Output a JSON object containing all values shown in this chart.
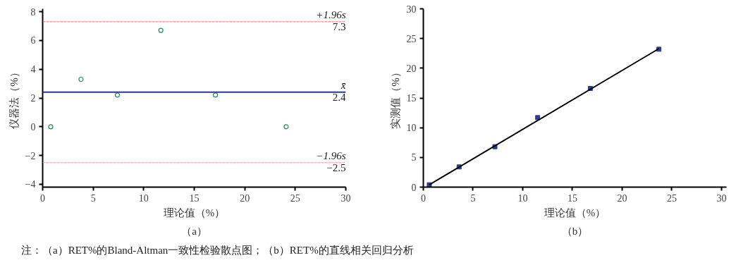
{
  "chart_data": [
    {
      "type": "scatter",
      "title": "（a）",
      "xlabel": "理论值（%）",
      "ylabel": "仪器法（%）",
      "xlim": [
        0,
        30
      ],
      "ylim": [
        -4.2,
        8.2
      ],
      "xticks": [
        0,
        5,
        10,
        15,
        20,
        25,
        30
      ],
      "yticks": [
        -4,
        -2,
        0,
        2,
        4,
        6,
        8
      ],
      "grid": false,
      "marker": "circle",
      "series": [
        {
          "color": "#2e8b57",
          "x": [
            0.8,
            3.8,
            7.4,
            11.7,
            17.1,
            24.1
          ],
          "values": [
            0,
            3.3,
            2.2,
            6.7,
            2.2,
            0
          ]
        }
      ],
      "ref_lines": [
        {
          "axis": "y",
          "value": 7.3,
          "label": "+1.96s",
          "color": "#ff6666",
          "line_style": "dashed"
        },
        {
          "axis": "y",
          "value": 2.4,
          "label": "x̄",
          "color": "#2b3a8f",
          "line_style": "solid"
        },
        {
          "axis": "y",
          "value": -2.5,
          "label": "−1.96s",
          "color": "#ff9999",
          "line_style": "dashed"
        }
      ],
      "annotations": [
        {
          "text": "7.3",
          "y": 7.3
        },
        {
          "text": "2.4",
          "y": 2.4
        },
        {
          "text": "−2.5",
          "y": -2.5
        },
        "注：（a）RET%的Bland-Altman一致性检验散点图；（b）RET%的直线相关回归分析"
      ]
    },
    {
      "type": "scatter",
      "title": "（b）",
      "xlabel": "理论值（%）",
      "ylabel": "实测值（%）",
      "xlim": [
        0,
        30.5
      ],
      "ylim": [
        0,
        30
      ],
      "xticks": [
        0,
        5,
        10,
        15,
        20,
        25,
        30
      ],
      "yticks": [
        0,
        5,
        10,
        15,
        20,
        25,
        30
      ],
      "grid": false,
      "series": [
        {
          "marker": "square",
          "color": "#2e3c8c",
          "x": [
            0.6,
            3.6,
            7.2,
            11.5,
            16.8,
            23.7
          ],
          "values": [
            0.4,
            3.4,
            6.8,
            11.7,
            16.6,
            23.2
          ]
        },
        {
          "type": "line",
          "color": "#000000",
          "x": [
            0.6,
            23.7
          ],
          "values": [
            0.4,
            23.3
          ]
        }
      ]
    }
  ]
}
